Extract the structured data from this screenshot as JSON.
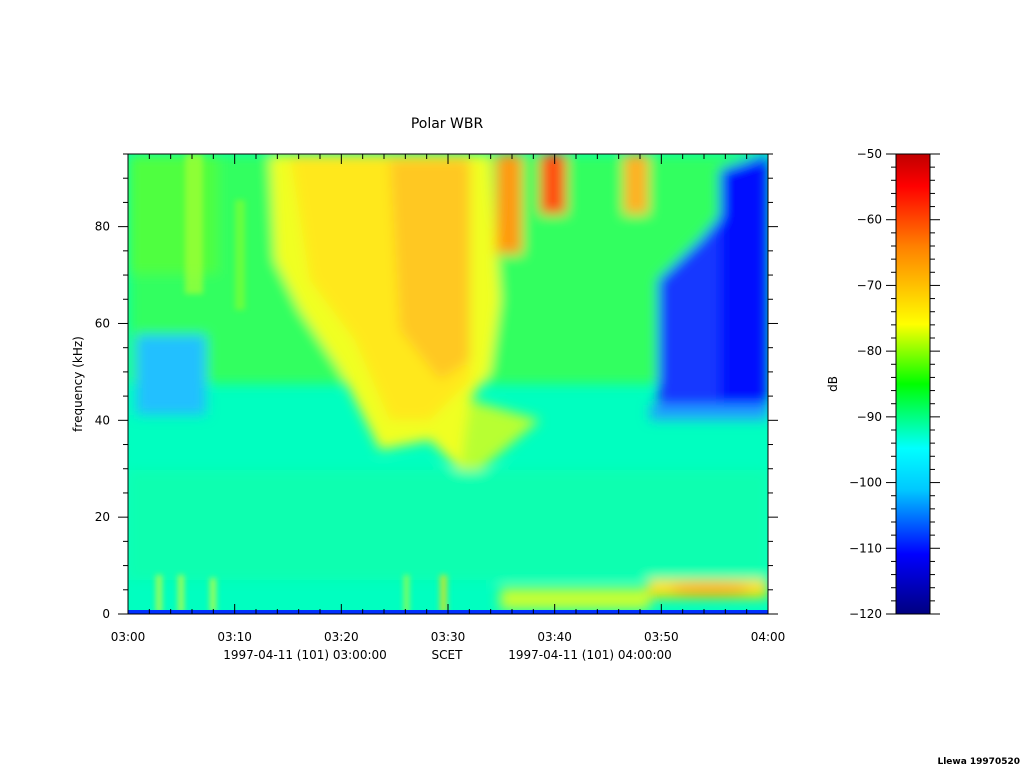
{
  "chart_data": {
    "type": "heatmap",
    "title": "Polar WBR",
    "ylabel": "frequency (kHz)",
    "x_tick_labels": [
      "03:00",
      "03:10",
      "03:20",
      "03:30",
      "03:40",
      "03:50",
      "04:00"
    ],
    "x_range_minutes": [
      0,
      60
    ],
    "y_ticks": [
      0,
      20,
      40,
      60,
      80
    ],
    "ylim": [
      0,
      95
    ],
    "xlabel_parts": [
      "1997-04-11 (101) 03:00:00",
      "SCET",
      "1997-04-11 (101) 04:00:00"
    ],
    "colorbar": {
      "label": "dB",
      "ticks": [
        -50,
        -60,
        -70,
        -80,
        -90,
        -100,
        -110,
        -120
      ],
      "range": [
        -120,
        -50
      ],
      "colors": [
        "#000080",
        "#0000ff",
        "#00c8ff",
        "#00ffff",
        "#00ff00",
        "#ffff00",
        "#ff8000",
        "#ff0000",
        "#c00000"
      ]
    },
    "features": [
      {
        "name": "wideband emission",
        "t": [
          14,
          36
        ],
        "f": [
          40,
          95
        ],
        "level_db": -74
      },
      {
        "name": "intense upper band",
        "t": [
          38,
          40
        ],
        "f": [
          80,
          95
        ],
        "level_db": -60
      },
      {
        "name": "quiet region",
        "t": [
          49,
          60
        ],
        "f": [
          42,
          95
        ],
        "level_db": -110
      },
      {
        "name": "low frequency line",
        "t": [
          49,
          60
        ],
        "f": [
          3,
          6
        ],
        "level_db": -70
      }
    ]
  },
  "credit": "Llewa 19970520"
}
